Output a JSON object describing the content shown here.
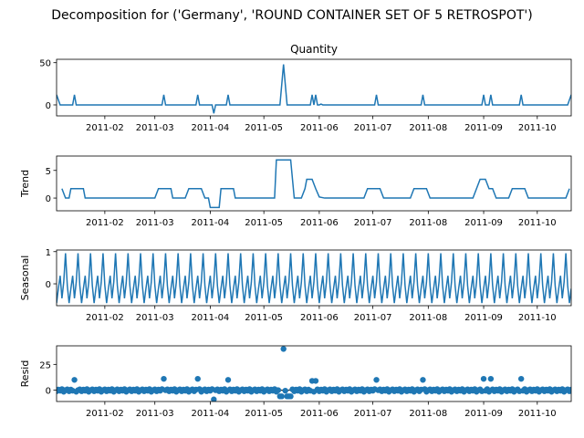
{
  "figure": {
    "suptitle": "Decomposition for ('Germany', 'ROUND CONTAINER SET OF 5 RETROSPOT')"
  },
  "colors": {
    "line": "#1f77b4",
    "marker": "#1f77b4",
    "axes": "#000000",
    "zero_line": "#000000"
  },
  "chart_data": [
    {
      "type": "line",
      "title": "Quantity",
      "ylabel": "",
      "ylim": [
        -13,
        54
      ],
      "yticks": [
        "0",
        "50"
      ],
      "ytick_values": [
        0,
        50
      ],
      "xlim": [
        "2011-01-05",
        "2011-10-20"
      ],
      "xticks": [
        "2011-02",
        "2011-03",
        "2011-04",
        "2011-05",
        "2011-06",
        "2011-07",
        "2011-08",
        "2011-09",
        "2011-10"
      ],
      "points": [
        [
          "2011-01-05",
          12
        ],
        [
          "2011-01-07",
          0
        ],
        [
          "2011-01-14",
          0
        ],
        [
          "2011-01-15",
          12
        ],
        [
          "2011-01-16",
          0
        ],
        [
          "2011-03-05",
          0
        ],
        [
          "2011-03-06",
          12
        ],
        [
          "2011-03-07",
          0
        ],
        [
          "2011-03-24",
          0
        ],
        [
          "2011-03-25",
          12
        ],
        [
          "2011-03-26",
          0
        ],
        [
          "2011-04-02",
          0
        ],
        [
          "2011-04-03",
          -10
        ],
        [
          "2011-04-04",
          0
        ],
        [
          "2011-04-10",
          0
        ],
        [
          "2011-04-11",
          12
        ],
        [
          "2011-04-12",
          0
        ],
        [
          "2011-05-10",
          0
        ],
        [
          "2011-05-12",
          48
        ],
        [
          "2011-05-14",
          0
        ],
        [
          "2011-05-27",
          0
        ],
        [
          "2011-05-28",
          12
        ],
        [
          "2011-05-29",
          0
        ],
        [
          "2011-05-30",
          12
        ],
        [
          "2011-05-31",
          0
        ],
        [
          "2011-06-01",
          0
        ],
        [
          "2011-06-02",
          1
        ],
        [
          "2011-06-03",
          0
        ],
        [
          "2011-07-02",
          0
        ],
        [
          "2011-07-03",
          12
        ],
        [
          "2011-07-04",
          0
        ],
        [
          "2011-07-28",
          0
        ],
        [
          "2011-07-29",
          12
        ],
        [
          "2011-07-30",
          0
        ],
        [
          "2011-08-31",
          0
        ],
        [
          "2011-09-01",
          12
        ],
        [
          "2011-09-02",
          0
        ],
        [
          "2011-09-04",
          0
        ],
        [
          "2011-09-05",
          12
        ],
        [
          "2011-09-06",
          0
        ],
        [
          "2011-09-21",
          0
        ],
        [
          "2011-09-22",
          12
        ],
        [
          "2011-09-23",
          0
        ],
        [
          "2011-10-18",
          0
        ],
        [
          "2011-10-20",
          12
        ]
      ]
    },
    {
      "type": "line",
      "title": "",
      "ylabel": "Trend",
      "ylim": [
        -2.3,
        7.6
      ],
      "yticks": [
        "0",
        "5"
      ],
      "ytick_values": [
        0,
        5
      ],
      "xlim": [
        "2011-01-05",
        "2011-10-20"
      ],
      "xticks": [
        "2011-02",
        "2011-03",
        "2011-04",
        "2011-05",
        "2011-06",
        "2011-07",
        "2011-08",
        "2011-09",
        "2011-10"
      ],
      "points": [
        [
          "2011-01-08",
          1.7
        ],
        [
          "2011-01-10",
          0
        ],
        [
          "2011-01-12",
          0
        ],
        [
          "2011-01-13",
          1.7
        ],
        [
          "2011-01-20",
          1.7
        ],
        [
          "2011-01-21",
          0
        ],
        [
          "2011-03-01",
          0
        ],
        [
          "2011-03-03",
          1.7
        ],
        [
          "2011-03-10",
          1.7
        ],
        [
          "2011-03-11",
          0
        ],
        [
          "2011-03-18",
          0
        ],
        [
          "2011-03-20",
          1.7
        ],
        [
          "2011-03-27",
          1.7
        ],
        [
          "2011-03-29",
          0
        ],
        [
          "2011-03-31",
          0
        ],
        [
          "2011-04-01",
          -1.7
        ],
        [
          "2011-04-06",
          -1.7
        ],
        [
          "2011-04-07",
          1.7
        ],
        [
          "2011-04-14",
          1.7
        ],
        [
          "2011-04-15",
          0
        ],
        [
          "2011-05-07",
          0
        ],
        [
          "2011-05-08",
          6.9
        ],
        [
          "2011-05-16",
          6.9
        ],
        [
          "2011-05-18",
          0
        ],
        [
          "2011-05-22",
          0
        ],
        [
          "2011-05-24",
          1.7
        ],
        [
          "2011-05-25",
          3.4
        ],
        [
          "2011-05-28",
          3.4
        ],
        [
          "2011-05-30",
          1.7
        ],
        [
          "2011-06-01",
          0.2
        ],
        [
          "2011-06-04",
          0
        ],
        [
          "2011-06-26",
          0
        ],
        [
          "2011-06-28",
          1.7
        ],
        [
          "2011-07-05",
          1.7
        ],
        [
          "2011-07-07",
          0
        ],
        [
          "2011-07-22",
          0
        ],
        [
          "2011-07-24",
          1.7
        ],
        [
          "2011-07-31",
          1.7
        ],
        [
          "2011-08-02",
          0
        ],
        [
          "2011-08-26",
          0
        ],
        [
          "2011-08-28",
          1.7
        ],
        [
          "2011-08-30",
          3.4
        ],
        [
          "2011-09-02",
          3.4
        ],
        [
          "2011-09-04",
          1.7
        ],
        [
          "2011-09-06",
          1.7
        ],
        [
          "2011-09-08",
          0
        ],
        [
          "2011-09-15",
          0
        ],
        [
          "2011-09-17",
          1.7
        ],
        [
          "2011-09-24",
          1.7
        ],
        [
          "2011-09-26",
          0
        ],
        [
          "2011-10-17",
          0
        ],
        [
          "2011-10-19",
          1.7
        ]
      ]
    },
    {
      "type": "line",
      "title": "",
      "ylabel": "Seasonal",
      "ylim": [
        -0.68,
        1.05
      ],
      "yticks": [
        "0",
        "1"
      ],
      "ytick_values": [
        0,
        1
      ],
      "xlim": [
        "2011-01-05",
        "2011-10-20"
      ],
      "xticks": [
        "2011-02",
        "2011-03",
        "2011-04",
        "2011-05",
        "2011-06",
        "2011-07",
        "2011-08",
        "2011-09",
        "2011-10"
      ],
      "period_days": 7,
      "pattern": [
        -0.6,
        -0.15,
        0.25,
        -0.45,
        0.05,
        0.95,
        -0.05
      ],
      "x_start": "2011-01-05",
      "x_end": "2011-10-20"
    },
    {
      "type": "scatter",
      "title": "",
      "ylabel": "Resid",
      "ylim": [
        -11,
        43
      ],
      "yticks": [
        "0",
        "25"
      ],
      "ytick_values": [
        0,
        25
      ],
      "xlim": [
        "2011-01-05",
        "2011-10-20"
      ],
      "xticks": [
        "2011-02",
        "2011-03",
        "2011-04",
        "2011-05",
        "2011-06",
        "2011-07",
        "2011-08",
        "2011-09",
        "2011-10"
      ],
      "x_start": "2011-01-05",
      "x_end": "2011-10-20",
      "baseline": [
        -1,
        0.5,
        -0.5,
        1,
        -1.5,
        0,
        0.8
      ],
      "outliers": [
        [
          "2011-01-15",
          10
        ],
        [
          "2011-03-06",
          11
        ],
        [
          "2011-03-25",
          11
        ],
        [
          "2011-04-03",
          -9
        ],
        [
          "2011-04-11",
          10
        ],
        [
          "2011-05-12",
          40
        ],
        [
          "2011-05-28",
          9
        ],
        [
          "2011-05-30",
          9
        ],
        [
          "2011-07-03",
          10
        ],
        [
          "2011-07-29",
          10
        ],
        [
          "2011-09-01",
          11
        ],
        [
          "2011-09-05",
          11
        ],
        [
          "2011-09-22",
          11
        ]
      ],
      "dips": [
        [
          "2011-05-10",
          -6
        ],
        [
          "2011-05-11",
          -6
        ],
        [
          "2011-05-14",
          -6
        ],
        [
          "2011-05-15",
          -6
        ],
        [
          "2011-05-16",
          -6
        ]
      ]
    }
  ]
}
